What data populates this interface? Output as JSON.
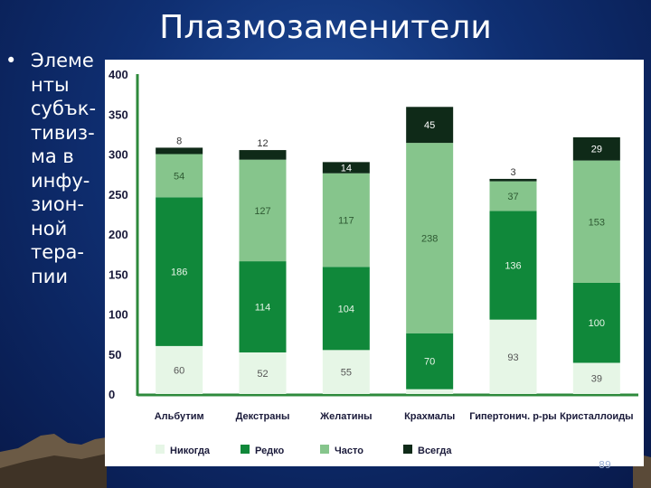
{
  "slide": {
    "title": "Плазмозаменители",
    "bullet_marker": "•",
    "bullet_text": "Элеме\nнты\nсубък-\nтивиз-\nма в\nинфу-\nзион-\nной\nтера-\nпии",
    "page_number": "89"
  },
  "colors": {
    "background": "#0f2f72",
    "text": "#ffffff",
    "Никогда": "#e6f6e6",
    "Редко": "#10883a",
    "Часто": "#86c58c",
    "Всегда": "#0f2a18",
    "axis": "#2e8a3c"
  },
  "chart_data": {
    "type": "bar",
    "stacked": true,
    "categories": [
      "Альбутим",
      "Декстраны",
      "Желатины",
      "Крахмалы",
      "Гипертонич. р-ры",
      "Кристаллоиды"
    ],
    "series": [
      {
        "name": "Никогда",
        "values": [
          60,
          52,
          55,
          6,
          93,
          39
        ]
      },
      {
        "name": "Редко",
        "values": [
          186,
          114,
          104,
          70,
          136,
          100
        ]
      },
      {
        "name": "Часто",
        "values": [
          54,
          127,
          117,
          238,
          37,
          153
        ]
      },
      {
        "name": "Всегда",
        "values": [
          8,
          12,
          14,
          45,
          3,
          29
        ]
      }
    ],
    "value_labels": [
      [
        "60",
        "52",
        "55",
        "6",
        "93",
        "39"
      ],
      [
        "186",
        "114",
        "104",
        "70",
        "136",
        "100"
      ],
      [
        "54",
        "127",
        "117",
        "238",
        "37",
        "153"
      ],
      [
        "8",
        "12",
        "14",
        "45",
        "3",
        "29"
      ]
    ],
    "y_ticks": [
      0,
      50,
      100,
      150,
      200,
      250,
      300,
      350,
      400
    ],
    "ylim": [
      0,
      400
    ],
    "grid": false,
    "legend_position": "bottom"
  }
}
